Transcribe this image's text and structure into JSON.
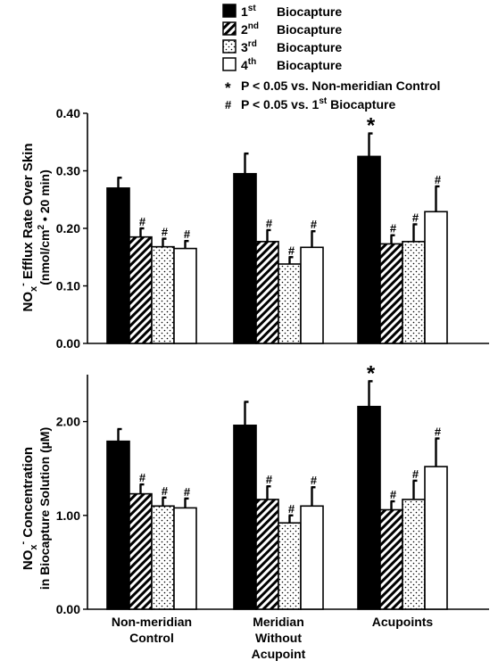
{
  "legend": {
    "items": [
      {
        "ord": "1",
        "sup": "st",
        "label": "Biocapture",
        "pattern": "solid"
      },
      {
        "ord": "2",
        "sup": "nd",
        "label": "Biocapture",
        "pattern": "hatch"
      },
      {
        "ord": "3",
        "sup": "rd",
        "label": "Biocapture",
        "pattern": "dots"
      },
      {
        "ord": "4",
        "sup": "th",
        "label": "Biocapture",
        "pattern": "open"
      }
    ],
    "notes": [
      {
        "symbol": "*",
        "text": "P < 0.05 vs. Non-meridian Control"
      },
      {
        "symbol": "#",
        "text_pre": "P < 0.05 vs. 1",
        "text_sup": "st",
        "text_post": " Biocapture"
      }
    ]
  },
  "colors": {
    "solid": "#000000",
    "outline": "#000000",
    "background": "#ffffff"
  },
  "chart_data": [
    {
      "type": "bar",
      "ylabel_line1_pre": "NO",
      "ylabel_line1_sub": "x",
      "ylabel_line1_sup": "-",
      "ylabel_line1_post": " Efflux Rate Over Skin",
      "ylabel_line2_pre": "(nmol/cm",
      "ylabel_line2_sup": "2",
      "ylabel_line2_post": " • 20 min)",
      "ylim": [
        0,
        0.4
      ],
      "yticks": [
        "0.00",
        "0.10",
        "0.20",
        "0.30",
        "0.40"
      ],
      "categories": [
        "Non-meridian Control",
        "Meridian Without Acupoint",
        "Acupoints"
      ],
      "series": [
        {
          "name": "1st Biocapture",
          "values": [
            0.27,
            0.295,
            0.325
          ],
          "errors": [
            0.018,
            0.035,
            0.04
          ],
          "marks": [
            "",
            "",
            "*"
          ]
        },
        {
          "name": "2nd Biocapture",
          "values": [
            0.185,
            0.177,
            0.173
          ],
          "errors": [
            0.015,
            0.02,
            0.015
          ],
          "marks": [
            "#",
            "#",
            "#"
          ]
        },
        {
          "name": "3rd Biocapture",
          "values": [
            0.168,
            0.138,
            0.177
          ],
          "errors": [
            0.014,
            0.012,
            0.03
          ],
          "marks": [
            "#",
            "#",
            "#"
          ]
        },
        {
          "name": "4th Biocapture",
          "values": [
            0.165,
            0.167,
            0.229
          ],
          "errors": [
            0.013,
            0.028,
            0.044
          ],
          "marks": [
            "#",
            "#",
            "#"
          ]
        }
      ]
    },
    {
      "type": "bar",
      "ylabel_line1_pre": "NO",
      "ylabel_line1_sub": "x",
      "ylabel_line1_sup": "-",
      "ylabel_line1_post": " Concentration",
      "ylabel_line2_pre": "in Biocapture Solution (µM)",
      "ylabel_line2_sup": "",
      "ylabel_line2_post": "",
      "ylim": [
        0,
        2.5
      ],
      "yticks": [
        "0.00",
        "1.00",
        "2.00"
      ],
      "categories": [
        "Non-meridian Control",
        "Meridian Without Acupoint",
        "Acupoints"
      ],
      "category_lines": [
        [
          "Non-meridian",
          "Control"
        ],
        [
          "Meridian",
          "Without",
          "Acupoint"
        ],
        [
          "Acupoints"
        ]
      ],
      "series": [
        {
          "name": "1st Biocapture",
          "values": [
            1.79,
            1.96,
            2.16
          ],
          "errors": [
            0.13,
            0.25,
            0.27
          ],
          "marks": [
            "",
            "",
            "*"
          ]
        },
        {
          "name": "2nd Biocapture",
          "values": [
            1.23,
            1.17,
            1.06
          ],
          "errors": [
            0.1,
            0.14,
            0.09
          ],
          "marks": [
            "#",
            "#",
            "#"
          ]
        },
        {
          "name": "3rd Biocapture",
          "values": [
            1.1,
            0.92,
            1.17
          ],
          "errors": [
            0.09,
            0.08,
            0.2
          ],
          "marks": [
            "#",
            "#",
            "#"
          ]
        },
        {
          "name": "4th Biocapture",
          "values": [
            1.08,
            1.1,
            1.52
          ],
          "errors": [
            0.1,
            0.2,
            0.3
          ],
          "marks": [
            "#",
            "#",
            "#"
          ]
        }
      ]
    }
  ]
}
